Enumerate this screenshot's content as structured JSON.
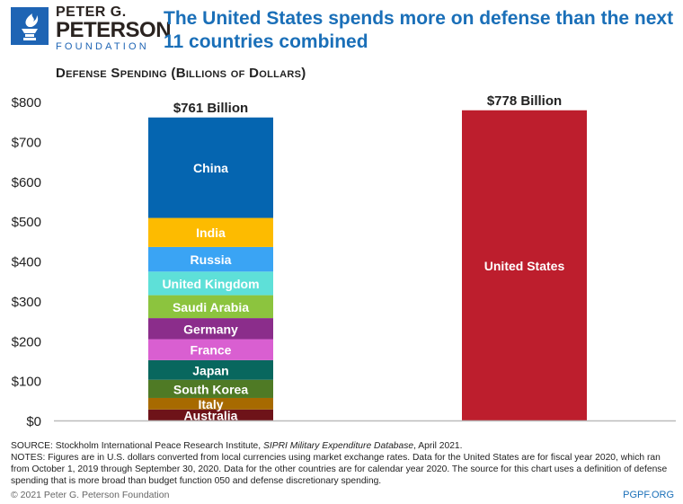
{
  "logo": {
    "line1": "PETER G.",
    "line2": "PETERSON",
    "line3": "FOUNDATION",
    "color": "#1e64b4"
  },
  "title": "The United States spends more on defense than the next 11 countries combined",
  "footer": {
    "source_prefix": "SOURCE: Stockholm International Peace Research Institute, ",
    "source_italic": "SIPRI Military Expenditure Database",
    "source_suffix": ", April 2021.",
    "notes": "NOTES: Figures are in U.S. dollars converted from local currencies using market exchange rates. Data for the United States are for fiscal year 2020, which ran from October 1, 2019 through September 30, 2020. Data for the other countries are for calendar year 2020. The source for this chart uses a definition of defense spending that is more broad than budget function 050 and defense discretionary spending.",
    "copyright": "© 2021 Peter G. Peterson Foundation",
    "url": "PGPF.ORG"
  },
  "chart_data": {
    "type": "bar",
    "stacked": true,
    "title": "Defense Spending (Billions of Dollars)",
    "ylim": [
      0,
      800
    ],
    "yticks": [
      0,
      100,
      200,
      300,
      400,
      500,
      600,
      700,
      800
    ],
    "ytick_labels": [
      "$0",
      "$100",
      "$200",
      "$300",
      "$400",
      "$500",
      "$600",
      "$700",
      "$800"
    ],
    "grid": false,
    "bars": [
      {
        "total_label": "$761 Billion",
        "segments": [
          {
            "name": "Australia",
            "value": 27.5,
            "color": "#6e1319"
          },
          {
            "name": "Italy",
            "value": 28.9,
            "color": "#a76a00"
          },
          {
            "name": "South Korea",
            "value": 45.7,
            "color": "#4f7a25"
          },
          {
            "name": "Japan",
            "value": 49.1,
            "color": "#08675e"
          },
          {
            "name": "France",
            "value": 52.7,
            "color": "#d95fd1"
          },
          {
            "name": "Germany",
            "value": 52.8,
            "color": "#8b2d8b"
          },
          {
            "name": "Saudi Arabia",
            "value": 57.5,
            "color": "#8cc43e"
          },
          {
            "name": "United Kingdom",
            "value": 59.2,
            "color": "#5ee0d8"
          },
          {
            "name": "Russia",
            "value": 61.7,
            "color": "#3aa4f4"
          },
          {
            "name": "India",
            "value": 72.9,
            "color": "#fdbb00"
          },
          {
            "name": "China",
            "value": 252,
            "color": "#0565b0"
          }
        ]
      },
      {
        "total_label": "$778 Billion",
        "segments": [
          {
            "name": "United States",
            "value": 778,
            "color": "#bd1e2d"
          }
        ]
      }
    ]
  }
}
